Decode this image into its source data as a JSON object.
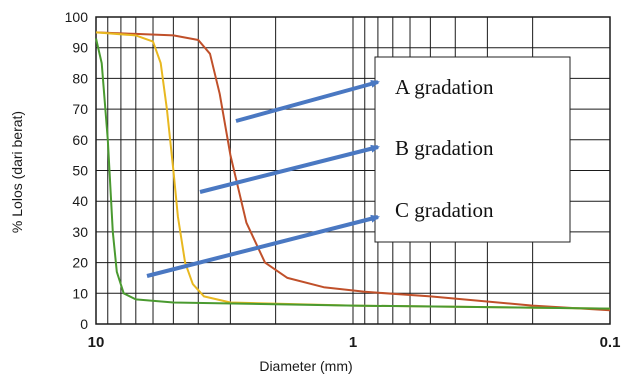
{
  "chart_data": {
    "type": "line",
    "xlabel": "Diameter (mm)",
    "ylabel": "% Lolos (dari berat)",
    "xscale": "log",
    "x_reversed": true,
    "xlim": [
      10,
      0.1
    ],
    "ylim": [
      0,
      100
    ],
    "yticks": [
      0,
      10,
      20,
      30,
      40,
      50,
      60,
      70,
      80,
      90,
      100
    ],
    "xticks": [
      {
        "value": 10,
        "label": "10"
      },
      {
        "value": 1,
        "label": "1"
      },
      {
        "value": 0.1,
        "label": "0.1"
      }
    ],
    "grid": true,
    "series": [
      {
        "name": "A gradation",
        "color": "#c0502a",
        "points": [
          [
            10,
            95
          ],
          [
            7,
            94.5
          ],
          [
            5,
            94
          ],
          [
            4,
            92.5
          ],
          [
            3.6,
            88
          ],
          [
            3.3,
            75
          ],
          [
            3,
            55
          ],
          [
            2.6,
            33
          ],
          [
            2.2,
            20
          ],
          [
            1.8,
            15
          ],
          [
            1.3,
            12
          ],
          [
            0.9,
            10.5
          ],
          [
            0.5,
            9
          ],
          [
            0.2,
            6
          ],
          [
            0.1,
            4.5
          ]
        ]
      },
      {
        "name": "B gradation",
        "color": "#e8b820",
        "points": [
          [
            10,
            95
          ],
          [
            7,
            94
          ],
          [
            6,
            92
          ],
          [
            5.6,
            85
          ],
          [
            5.3,
            70
          ],
          [
            5,
            50
          ],
          [
            4.8,
            35
          ],
          [
            4.5,
            20
          ],
          [
            4.2,
            13
          ],
          [
            3.8,
            9
          ],
          [
            3,
            7
          ],
          [
            1,
            6
          ],
          [
            0.1,
            5
          ]
        ]
      },
      {
        "name": "C gradation",
        "color": "#4a9a30",
        "points": [
          [
            10,
            93
          ],
          [
            9.5,
            85
          ],
          [
            9,
            60
          ],
          [
            8.8,
            45
          ],
          [
            8.6,
            30
          ],
          [
            8.3,
            17
          ],
          [
            7.8,
            10
          ],
          [
            7,
            8
          ],
          [
            5,
            7
          ],
          [
            1,
            6
          ],
          [
            0.1,
            5
          ]
        ]
      }
    ],
    "annotations": [
      "A gradation",
      "B gradation",
      "C gradation"
    ]
  }
}
